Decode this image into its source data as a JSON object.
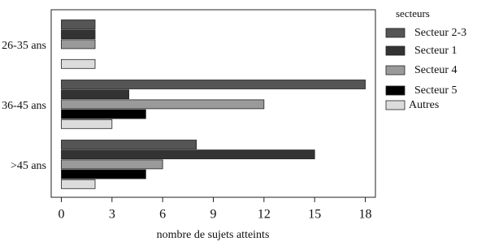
{
  "chart_data": {
    "type": "hbar",
    "categories": [
      "26-35 ans",
      "36-45 ans",
      ">45 ans"
    ],
    "series": [
      {
        "name": "Secteur 2-3",
        "color": "#555555",
        "values": [
          2,
          18,
          8
        ]
      },
      {
        "name": "Secteur 1",
        "color": "#333333",
        "values": [
          2,
          4,
          15
        ]
      },
      {
        "name": "Secteur 4",
        "color": "#9a9a9a",
        "values": [
          2,
          12,
          6
        ]
      },
      {
        "name": "Secteur 5",
        "color": "#000000",
        "values": [
          0,
          5,
          5
        ]
      },
      {
        "name": "Autres",
        "color": "#dcdcdc",
        "values": [
          2,
          3,
          2
        ]
      }
    ],
    "xlabel": "nombre de sujets atteints",
    "legend_title": "secteurs",
    "xlim": [
      -0.6,
      18.6
    ],
    "xticks": [
      0,
      3,
      6,
      9,
      12,
      15,
      18
    ]
  }
}
